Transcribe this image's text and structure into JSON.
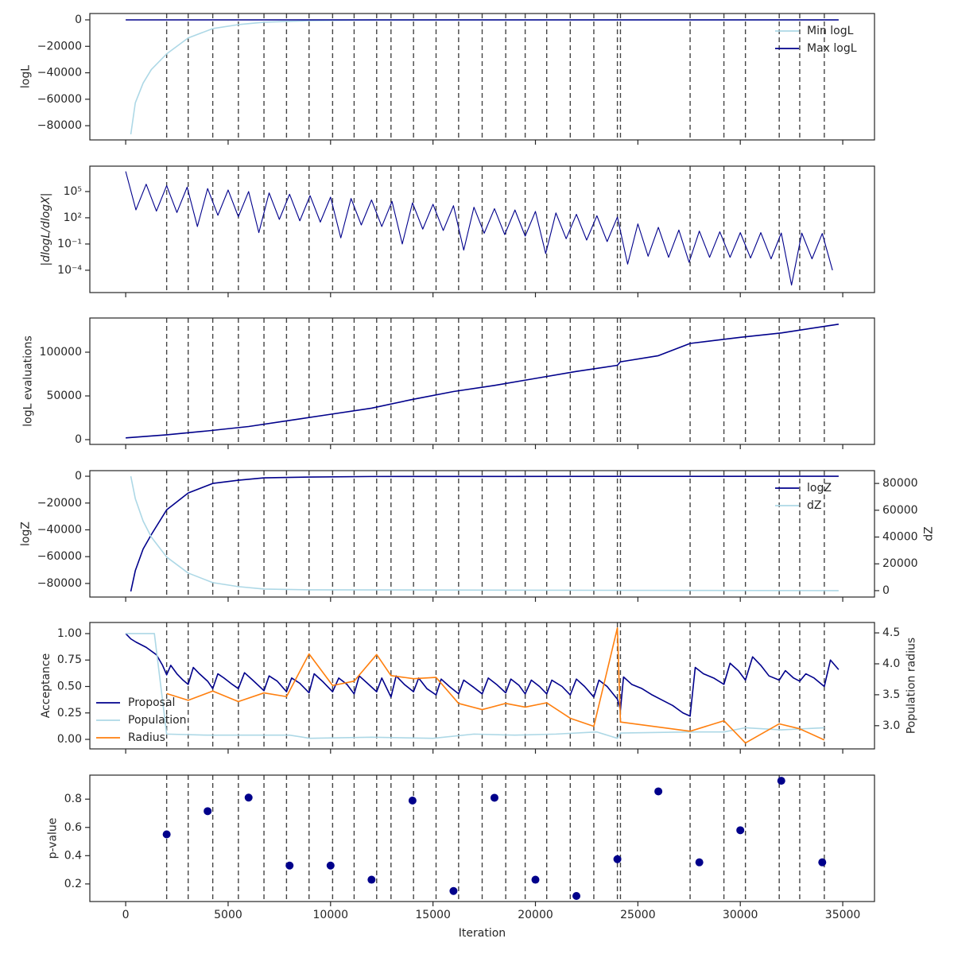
{
  "chart_data": [
    {
      "type": "line",
      "ylabel": "logL",
      "xlim": [
        -1750,
        36550
      ],
      "ylim": [
        -90750,
        4800
      ],
      "yticks": [
        {
          "value": -80000,
          "label": "−80000"
        },
        {
          "value": -60000,
          "label": "−60000"
        },
        {
          "value": -40000,
          "label": "−40000"
        },
        {
          "value": -20000,
          "label": "−20000"
        },
        0
      ],
      "legend": "upper right",
      "vlines": [
        2000,
        3050,
        4250,
        5500,
        6750,
        7850,
        8950,
        10100,
        11150,
        12250,
        12950,
        14050,
        15150,
        16250,
        17400,
        18550,
        19500,
        20550,
        21700,
        22850,
        24000,
        24150,
        27550,
        29200,
        30250,
        31900,
        32900,
        34100
      ],
      "series": [
        {
          "name": "Min logL",
          "color": "#add8e6",
          "x": [
            250,
            470,
            850,
            1250,
            2000,
            3050,
            4250,
            5500,
            6750,
            9000,
            12000,
            34800
          ],
          "values": [
            -86500,
            -62700,
            -47800,
            -37600,
            -25700,
            -13700,
            -6600,
            -3600,
            -1800,
            -600,
            -100,
            0
          ]
        },
        {
          "name": "Max logL",
          "color": "#00008b",
          "x": [
            0,
            34800
          ],
          "values": [
            0,
            0
          ]
        }
      ]
    },
    {
      "type": "line",
      "ylabel": "|dlogL/dlogX|",
      "yscale": "log",
      "xlim": [
        -1750,
        36550
      ],
      "ylim": [
        2.8e-07,
        80000000.0
      ],
      "yticks": [
        {
          "value": 0.0001,
          "label": "10⁻⁴"
        },
        {
          "value": 0.1,
          "label": "10⁻¹"
        },
        {
          "value": 100,
          "label": "10²"
        },
        {
          "value": 100000,
          "label": "10⁵"
        }
      ],
      "vlines": [
        2000,
        3050,
        4250,
        5500,
        6750,
        7850,
        8950,
        10100,
        11150,
        12250,
        12950,
        14050,
        15150,
        16250,
        17400,
        18550,
        19500,
        20550,
        21700,
        22850,
        24000,
        24150,
        27550,
        29200,
        30250,
        31900,
        32900,
        34100
      ],
      "series": [
        {
          "color": "#00008b",
          "x": [
            0,
            500,
            1000,
            1500,
            2000,
            2500,
            3000,
            3500,
            4000,
            4500,
            5000,
            5500,
            6000,
            6500,
            7000,
            7500,
            8000,
            8500,
            9000,
            9500,
            10000,
            10500,
            11000,
            11500,
            12000,
            12500,
            13000,
            13500,
            14000,
            14500,
            15000,
            15500,
            16000,
            16500,
            17000,
            17500,
            18000,
            18500,
            19000,
            19500,
            20000,
            20500,
            21000,
            21500,
            22000,
            22500,
            23000,
            23500,
            24000,
            24500,
            25000,
            25500,
            26000,
            26500,
            27000,
            27500,
            28000,
            28500,
            29000,
            29500,
            30000,
            30500,
            31000,
            31500,
            32000,
            32500,
            33000,
            33500,
            34000,
            34500
          ],
          "values": [
            20000000.0,
            800,
            690000,
            580,
            470000,
            400,
            320000,
            10,
            220000,
            190,
            150000,
            130,
            100000,
            2,
            70000,
            65,
            49000,
            45,
            34000,
            32,
            23000,
            0.5,
            16000,
            15,
            11000,
            10,
            7400,
            0.1,
            5100,
            5,
            3500,
            3.5,
            2400,
            0.02,
            1600,
            1.7,
            1100,
            1.2,
            780,
            0.8,
            530,
            0.008,
            360,
            0.4,
            250,
            0.28,
            170,
            0.19,
            120,
            0.0005,
            20,
            0.004,
            8,
            0.003,
            4,
            0.0008,
            3,
            0.003,
            2.5,
            0.003,
            2,
            0.0025,
            2,
            0.002,
            1.8,
            2e-06,
            1.8,
            0.002,
            1.6,
            0.0001
          ]
        }
      ]
    },
    {
      "type": "line",
      "ylabel": "logL evaluations",
      "xlim": [
        -1750,
        36550
      ],
      "ylim": [
        -5450,
        139100
      ],
      "yticks": [
        0,
        50000,
        100000
      ],
      "vlines": [
        2000,
        3050,
        4250,
        5500,
        6750,
        7850,
        8950,
        10100,
        11150,
        12250,
        12950,
        14050,
        15150,
        16250,
        17400,
        18550,
        19500,
        20550,
        21700,
        22850,
        24000,
        24150,
        27550,
        29200,
        30250,
        31900,
        32900,
        34100
      ],
      "series": [
        {
          "color": "#00008b",
          "x": [
            0,
            2000,
            4000,
            6000,
            8000,
            10000,
            12000,
            14000,
            16000,
            18000,
            20000,
            22000,
            24000,
            24150,
            26000,
            27550,
            30000,
            32000,
            34800
          ],
          "values": [
            2000,
            5500,
            10000,
            15000,
            22000,
            29000,
            36000,
            46000,
            55000,
            62000,
            70000,
            78000,
            85000,
            89000,
            96000,
            110000,
            117000,
            122000,
            132000
          ]
        }
      ]
    },
    {
      "type": "line",
      "ylabel": "logZ",
      "y2label": "dZ",
      "xlim": [
        -1750,
        36550
      ],
      "ylim": [
        -90150,
        4180
      ],
      "yticks": [
        {
          "value": -80000,
          "label": "−80000"
        },
        {
          "value": -60000,
          "label": "−60000"
        },
        {
          "value": -40000,
          "label": "−40000"
        },
        {
          "value": -20000,
          "label": "−20000"
        },
        0
      ],
      "y2lim": [
        -4780,
        89550
      ],
      "y2ticks": [
        0,
        20000,
        40000,
        60000,
        80000
      ],
      "legend": "upper right",
      "vlines": [
        2000,
        3050,
        4250,
        5500,
        6750,
        7850,
        8950,
        10100,
        11150,
        12250,
        12950,
        14050,
        15150,
        16250,
        17400,
        18550,
        19500,
        20550,
        21700,
        22850,
        24000,
        24150,
        27550,
        29200,
        30250,
        31900,
        32900,
        34100
      ],
      "series": [
        {
          "name": "logZ",
          "color": "#00008b",
          "x": [
            250,
            470,
            850,
            1250,
            2000,
            3050,
            4250,
            5500,
            6750,
            9000,
            12000,
            34800
          ],
          "values": [
            -85970,
            -70450,
            -54330,
            -43580,
            -25070,
            -12540,
            -5370,
            -3000,
            -1200,
            -600,
            -200,
            0
          ]
        },
        {
          "name": "dZ",
          "color": "#add8e6",
          "axis": "y2",
          "x": [
            250,
            470,
            850,
            1250,
            2000,
            3050,
            4250,
            5500,
            6750,
            9000,
            34800
          ],
          "values": [
            85370,
            68660,
            51940,
            40000,
            25070,
            13130,
            5970,
            3000,
            1200,
            600,
            0
          ]
        }
      ]
    },
    {
      "type": "line",
      "ylabel": "Acceptance",
      "y2label": "Population radius",
      "xlim": [
        -1750,
        36550
      ],
      "ylim": [
        -0.09,
        1.105
      ],
      "yticks": [
        {
          "value": 0,
          "label": "0.00"
        },
        {
          "value": 0.25,
          "label": "0.25"
        },
        {
          "value": 0.5,
          "label": "0.50"
        },
        {
          "value": 0.75,
          "label": "0.75"
        },
        {
          "value": 1,
          "label": "1.00"
        }
      ],
      "y2lim": [
        2.625,
        4.668
      ],
      "y2ticks": [
        {
          "value": 3,
          "label": "3.0"
        },
        3.5,
        {
          "value": 4,
          "label": "4.0"
        },
        4.5
      ],
      "legend": "lower left",
      "vlines": [
        2000,
        3050,
        4250,
        5500,
        6750,
        7850,
        8950,
        10100,
        11150,
        12250,
        12950,
        14050,
        15150,
        16250,
        17400,
        18550,
        19500,
        20550,
        21700,
        22850,
        24000,
        24150,
        27550,
        29200,
        30250,
        31900,
        32900,
        34100
      ],
      "series": [
        {
          "name": "Proposal",
          "color": "#00008b",
          "x": [
            0,
            250,
            500,
            1000,
            1500,
            1800,
            2000,
            2200,
            2500,
            2800,
            3050,
            3300,
            3600,
            4000,
            4250,
            4500,
            4800,
            5200,
            5500,
            5800,
            6200,
            6750,
            7000,
            7400,
            7850,
            8100,
            8500,
            8950,
            9200,
            9600,
            10100,
            10400,
            10800,
            11150,
            11400,
            11800,
            12250,
            12500,
            12950,
            13200,
            13600,
            14050,
            14300,
            14700,
            15150,
            15400,
            15800,
            16250,
            16500,
            17000,
            17400,
            17700,
            18100,
            18550,
            18800,
            19200,
            19500,
            19800,
            20200,
            20550,
            20800,
            21300,
            21700,
            22000,
            22400,
            22850,
            23100,
            23500,
            24000,
            24150,
            24300,
            24700,
            25200,
            25700,
            26200,
            26700,
            27200,
            27550,
            27800,
            28200,
            28700,
            29200,
            29500,
            29900,
            30250,
            30600,
            31000,
            31400,
            31900,
            32200,
            32600,
            32900,
            33200,
            33600,
            34100,
            34400,
            34800
          ],
          "values": [
            1.0,
            0.95,
            0.92,
            0.87,
            0.8,
            0.7,
            0.61,
            0.7,
            0.62,
            0.56,
            0.52,
            0.68,
            0.62,
            0.55,
            0.48,
            0.62,
            0.58,
            0.52,
            0.48,
            0.63,
            0.56,
            0.46,
            0.6,
            0.55,
            0.45,
            0.58,
            0.53,
            0.44,
            0.62,
            0.55,
            0.45,
            0.58,
            0.52,
            0.43,
            0.6,
            0.53,
            0.45,
            0.58,
            0.4,
            0.6,
            0.52,
            0.45,
            0.58,
            0.48,
            0.42,
            0.57,
            0.5,
            0.43,
            0.56,
            0.49,
            0.43,
            0.58,
            0.52,
            0.44,
            0.57,
            0.51,
            0.43,
            0.56,
            0.5,
            0.43,
            0.56,
            0.5,
            0.42,
            0.57,
            0.5,
            0.4,
            0.56,
            0.5,
            0.38,
            0.28,
            0.59,
            0.52,
            0.48,
            0.42,
            0.37,
            0.32,
            0.25,
            0.22,
            0.68,
            0.62,
            0.58,
            0.52,
            0.72,
            0.65,
            0.56,
            0.78,
            0.7,
            0.6,
            0.56,
            0.65,
            0.58,
            0.55,
            0.62,
            0.58,
            0.5,
            0.75,
            0.66
          ]
        },
        {
          "name": "Population",
          "color": "#add8e6",
          "x": [
            0,
            1400,
            2000,
            4000,
            8000,
            9000,
            12000,
            15000,
            17000,
            19000,
            21000,
            23000,
            24000,
            24150,
            27500,
            29200,
            30250,
            32000,
            34100
          ],
          "values": [
            1.0,
            1.0,
            0.05,
            0.04,
            0.04,
            0.01,
            0.02,
            0.01,
            0.05,
            0.04,
            0.05,
            0.07,
            0.01,
            0.06,
            0.07,
            0.07,
            0.11,
            0.09,
            0.11
          ]
        },
        {
          "name": "Radius",
          "color": "#ff7f0e",
          "axis": "y2",
          "x": [
            2000,
            3050,
            4250,
            5500,
            6750,
            7850,
            8950,
            10100,
            11150,
            12250,
            12950,
            14050,
            15150,
            16250,
            17400,
            18550,
            19500,
            20550,
            21700,
            22850,
            24000,
            24150,
            27550,
            29200,
            30250,
            31900,
            32900,
            34100
          ],
          "values": [
            3.52,
            3.41,
            3.56,
            3.39,
            3.53,
            3.47,
            4.16,
            3.65,
            3.72,
            4.15,
            3.81,
            3.76,
            3.78,
            3.36,
            3.26,
            3.36,
            3.3,
            3.37,
            3.12,
            2.99,
            4.58,
            3.06,
            2.91,
            3.08,
            2.72,
            3.03,
            2.95,
            2.77
          ]
        }
      ]
    },
    {
      "type": "scatter",
      "ylabel": "p-value",
      "xlabel": "Iteration",
      "xlim": [
        -1750,
        36550
      ],
      "ylim": [
        0.0755,
        0.97
      ],
      "xticks": [
        0,
        5000,
        10000,
        15000,
        20000,
        25000,
        30000,
        35000
      ],
      "yticks": [
        0.2,
        0.4,
        0.6,
        0.8
      ],
      "vlines": [
        2000,
        3050,
        4250,
        5500,
        6750,
        7850,
        8950,
        10100,
        11150,
        12250,
        12950,
        14050,
        15150,
        16250,
        17400,
        18550,
        19500,
        20550,
        21700,
        22850,
        24000,
        24150,
        27550,
        29200,
        30250,
        31900,
        32900,
        34100
      ],
      "series": [
        {
          "color": "#00008b",
          "x": [
            2000,
            4000,
            6000,
            8000,
            10000,
            12000,
            14000,
            16000,
            18000,
            20000,
            22000,
            24000,
            26000,
            28000,
            30000,
            32000,
            34000
          ],
          "values": [
            0.551,
            0.715,
            0.811,
            0.33,
            0.33,
            0.23,
            0.79,
            0.15,
            0.81,
            0.23,
            0.115,
            0.375,
            0.855,
            0.353,
            0.58,
            0.93,
            0.353
          ]
        }
      ]
    }
  ]
}
